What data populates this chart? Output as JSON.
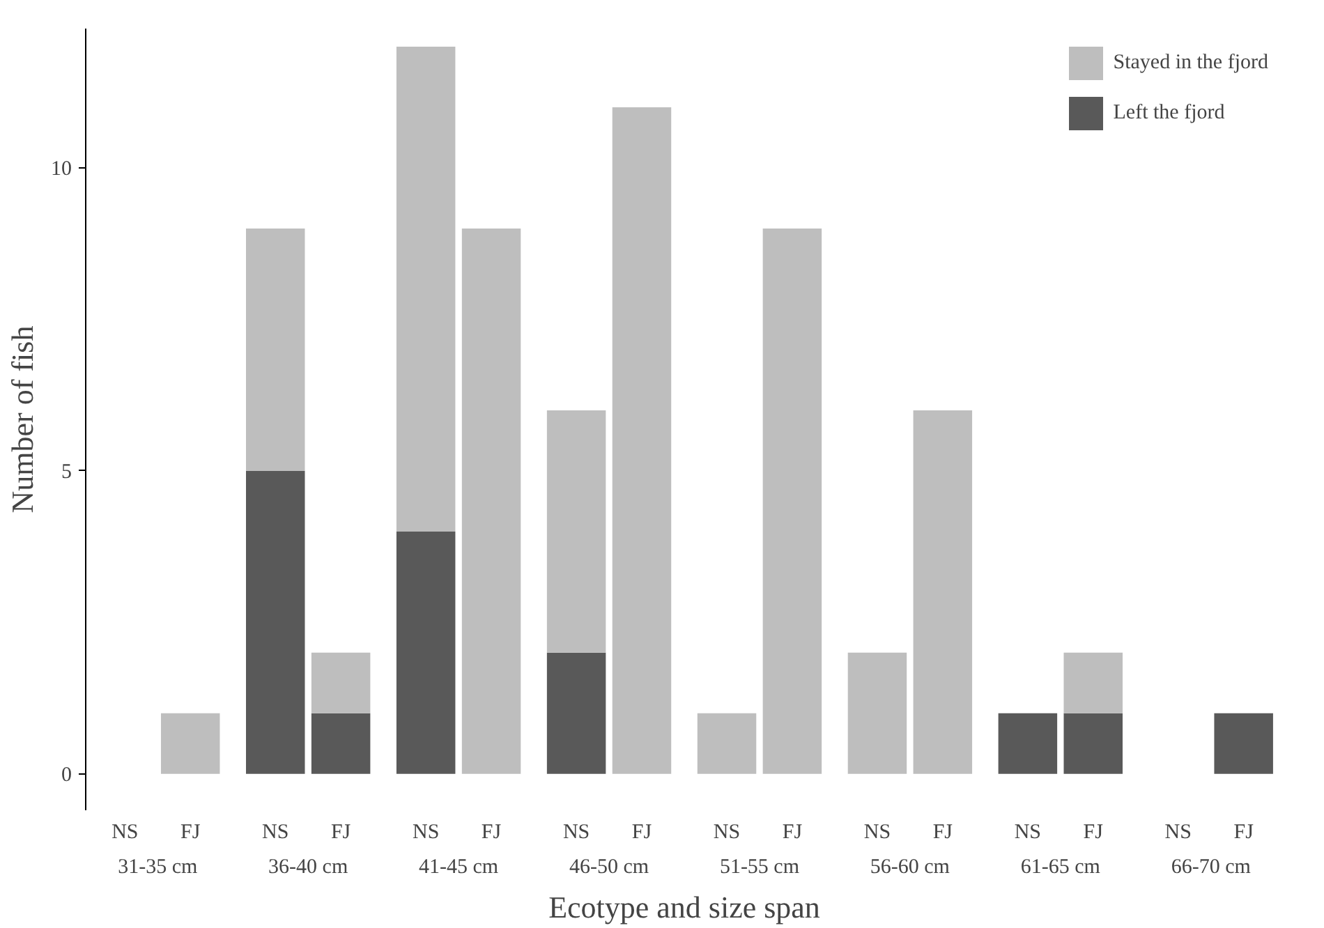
{
  "chart_data": {
    "type": "bar",
    "stacked": true,
    "xlabel": "Ecotype and size span",
    "ylabel": "Number of fish",
    "categories": [
      "NS",
      "FJ",
      "NS",
      "FJ",
      "NS",
      "FJ",
      "NS",
      "FJ",
      "NS",
      "FJ",
      "NS",
      "FJ",
      "NS",
      "FJ",
      "NS",
      "FJ"
    ],
    "annotations": [
      "31-35 cm",
      "36-40 cm",
      "41-45 cm",
      "46-50 cm",
      "51-55 cm",
      "56-60 cm",
      "61-65 cm",
      "66-70 cm"
    ],
    "series": [
      {
        "name": "Left the fjord",
        "color": "#595959",
        "values": [
          null,
          null,
          5,
          1,
          4,
          null,
          2,
          null,
          null,
          null,
          null,
          null,
          1,
          1,
          null,
          1
        ]
      },
      {
        "name": "Stayed in the fjord",
        "color": "#bebebe",
        "values": [
          null,
          1,
          4,
          1,
          8,
          9,
          4,
          11,
          1,
          9,
          2,
          6,
          null,
          1,
          null,
          null
        ]
      }
    ],
    "ylim": [
      -0.6,
      12.3
    ],
    "yticks": [
      0,
      5,
      10
    ],
    "grid": false,
    "legend": "top right"
  }
}
